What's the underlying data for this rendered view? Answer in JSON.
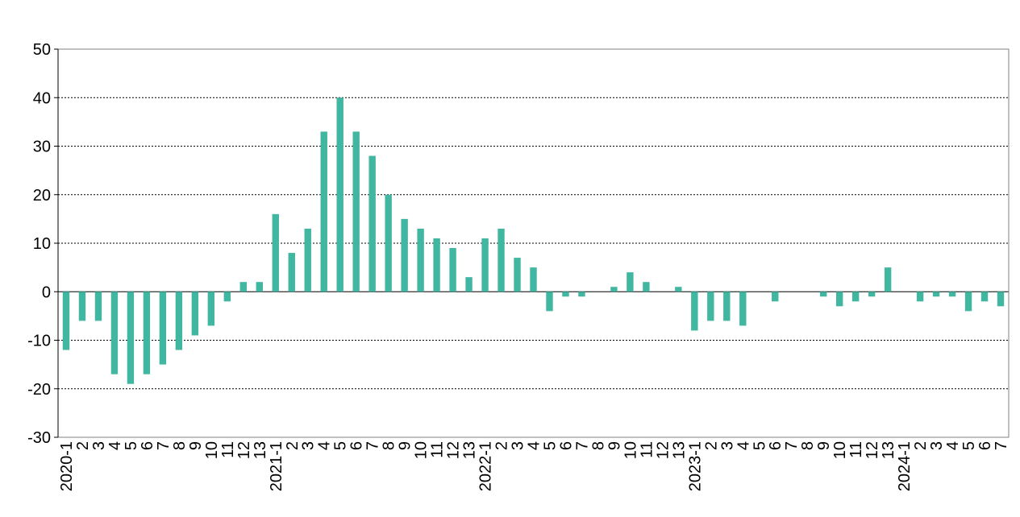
{
  "chart_data": {
    "type": "bar",
    "title": "",
    "xlabel": "",
    "ylabel": "",
    "ylim": [
      -30,
      50
    ],
    "yticks": [
      -30,
      -20,
      -10,
      0,
      10,
      20,
      30,
      40,
      50
    ],
    "grid": "horizontal dashed",
    "legend": "none",
    "bar_color": "#41b6a0",
    "categories": [
      "2020-1",
      "2",
      "3",
      "4",
      "5",
      "6",
      "7",
      "8",
      "9",
      "10",
      "11",
      "12",
      "13",
      "2021-1",
      "2",
      "3",
      "4",
      "5",
      "6",
      "7",
      "8",
      "9",
      "10",
      "11",
      "12",
      "13",
      "2022-1",
      "2",
      "3",
      "4",
      "5",
      "6",
      "7",
      "8",
      "9",
      "10",
      "11",
      "12",
      "13",
      "2023-1",
      "2",
      "3",
      "4",
      "5",
      "6",
      "7",
      "8",
      "9",
      "10",
      "11",
      "12",
      "13",
      "2024-1",
      "2",
      "3",
      "4",
      "5",
      "6",
      "7"
    ],
    "values": [
      -12,
      -6,
      -6,
      -17,
      -19,
      -17,
      -15,
      -12,
      -9,
      -7,
      -2,
      2,
      2,
      16,
      8,
      13,
      33,
      40,
      33,
      28,
      20,
      15,
      13,
      11,
      9,
      3,
      11,
      13,
      7,
      5,
      -4,
      -1,
      -1,
      0,
      1,
      4,
      2,
      0,
      1,
      -8,
      -6,
      -6,
      -7,
      0,
      -2,
      0,
      0,
      -1,
      -3,
      -2,
      -1,
      5,
      0,
      -2,
      -1,
      -1,
      -4,
      -2,
      -3
    ]
  }
}
